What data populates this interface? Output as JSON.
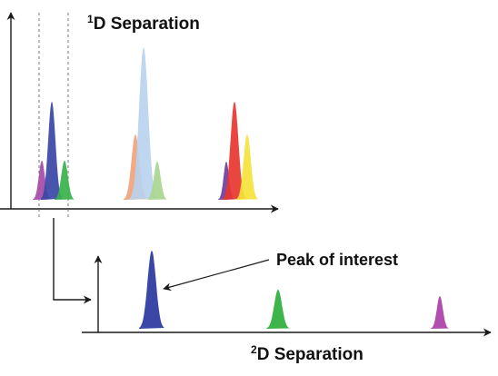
{
  "title_1d": {
    "sup": "1",
    "text": "D Separation"
  },
  "title_2d": {
    "sup": "2",
    "text": "D Separation"
  },
  "annotation": "Peak of interest",
  "peaks_1d": [
    {
      "name": "peak-1d-purple-a",
      "color": "#a64aa8"
    },
    {
      "name": "peak-1d-darkblue",
      "color": "#3a47a6"
    },
    {
      "name": "peak-1d-green-a",
      "color": "#37b24a"
    },
    {
      "name": "peak-1d-orange",
      "color": "#f0a27c"
    },
    {
      "name": "peak-1d-lightblue",
      "color": "#b8d3ee"
    },
    {
      "name": "peak-1d-lightgreen",
      "color": "#a9d690"
    },
    {
      "name": "peak-1d-purple-b",
      "color": "#6b3fa0"
    },
    {
      "name": "peak-1d-red",
      "color": "#e8352e"
    },
    {
      "name": "peak-1d-yellow",
      "color": "#f5e23a"
    }
  ],
  "peaks_2d": [
    {
      "name": "peak-2d-darkblue",
      "color": "#3a47a6"
    },
    {
      "name": "peak-2d-green",
      "color": "#3db54a"
    },
    {
      "name": "peak-2d-purple",
      "color": "#b24fae"
    }
  ],
  "colors": {
    "axis": "#1a1a1a",
    "guide": "#555555"
  }
}
